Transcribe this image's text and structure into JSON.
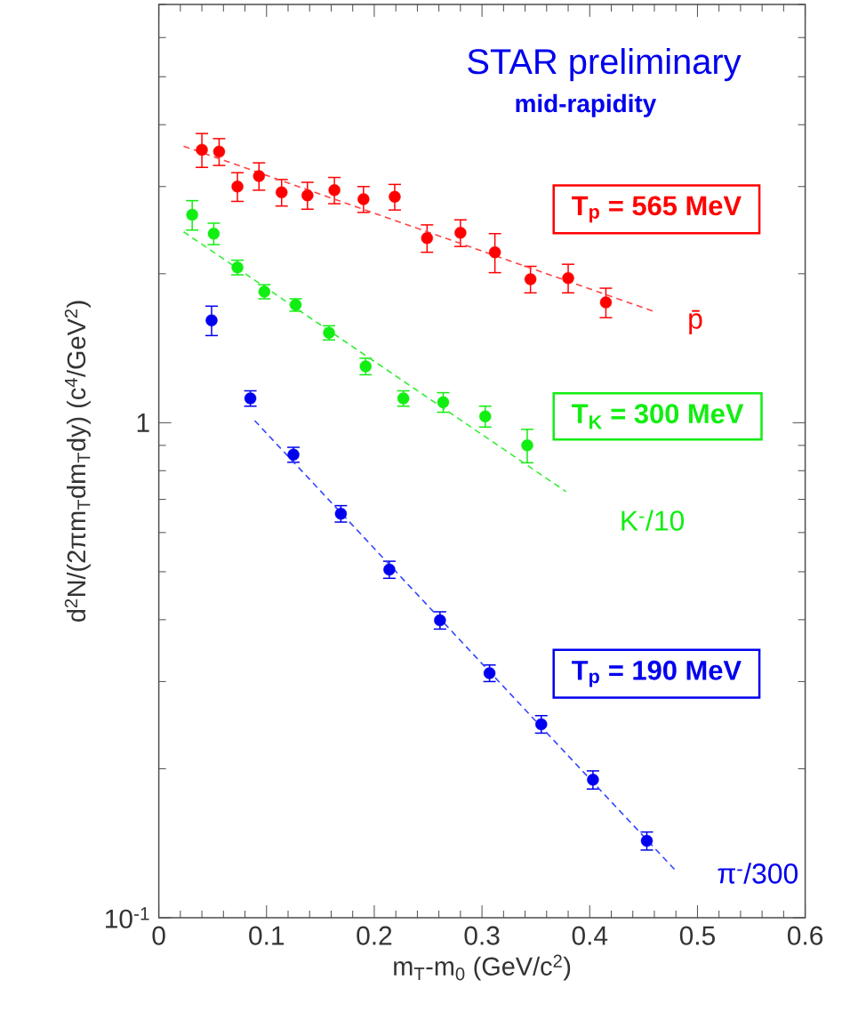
{
  "chart_data": {
    "type": "scatter",
    "xlabel": "m$_{T}$-m$_{0}$ (GeV/c$^{2}$)",
    "ylabel": "d$^{2}$N/(2πm$_{T}$dm$_{T}$dy) (c$^{4}$/GeV$^{2}$)",
    "annotations": [
      "STAR preliminary",
      "mid-rapidity",
      "T$_{p}$ = 565 MeV",
      "T$_{K}$ = 300 MeV",
      "T$_{p}$ = 190 MeV"
    ],
    "log": "y",
    "marker": "circle",
    "xlim": [
      0,
      0.6
    ],
    "ylim": [
      0.1,
      7
    ],
    "xticks": [
      0,
      0.1,
      0.2,
      0.3,
      0.4,
      0.5,
      0.6,
      {
        "value": 0.02,
        "label": null
      },
      {
        "value": 0.04,
        "label": null
      },
      {
        "value": 0.06,
        "label": null
      },
      {
        "value": 0.08,
        "label": null
      },
      {
        "value": 0.12,
        "label": null
      },
      {
        "value": 0.14,
        "label": null
      },
      {
        "value": 0.16,
        "label": null
      },
      {
        "value": 0.18,
        "label": null
      },
      {
        "value": 0.22,
        "label": null
      },
      {
        "value": 0.24,
        "label": null
      },
      {
        "value": 0.26,
        "label": null
      },
      {
        "value": 0.28,
        "label": null
      },
      {
        "value": 0.32,
        "label": null
      },
      {
        "value": 0.34,
        "label": null
      },
      {
        "value": 0.36,
        "label": null
      },
      {
        "value": 0.38,
        "label": null
      },
      {
        "value": 0.42,
        "label": null
      },
      {
        "value": 0.44,
        "label": null
      },
      {
        "value": 0.46,
        "label": null
      },
      {
        "value": 0.48,
        "label": null
      },
      {
        "value": 0.52,
        "label": null
      },
      {
        "value": 0.54,
        "label": null
      },
      {
        "value": 0.56,
        "label": null
      },
      {
        "value": 0.58,
        "label": null
      }
    ],
    "yticks": [
      {
        "value": 0.1,
        "label": "10$^{-1}$"
      },
      1,
      {
        "value": 0.2,
        "label": null
      },
      {
        "value": 0.3,
        "label": null
      },
      {
        "value": 0.4,
        "label": null
      },
      {
        "value": 0.5,
        "label": null
      },
      {
        "value": 0.6,
        "label": null
      },
      {
        "value": 0.7,
        "label": null
      },
      {
        "value": 0.8,
        "label": null
      },
      {
        "value": 0.9,
        "label": null
      },
      {
        "value": 2,
        "label": null
      },
      {
        "value": 3,
        "label": null
      },
      {
        "value": 4,
        "label": null
      },
      {
        "value": 5,
        "label": null
      },
      {
        "value": 6,
        "label": null
      },
      {
        "value": 7,
        "label": null
      }
    ],
    "series": [
      {
        "name": "p̄",
        "color": "#ff0000",
        "x": [
          0.04,
          0.056,
          0.073,
          0.093,
          0.114,
          0.138,
          0.163,
          0.19,
          0.219,
          0.249,
          0.28,
          0.312,
          0.345,
          0.38,
          0.415
        ],
        "values": [
          3.56,
          3.53,
          3.0,
          3.15,
          2.92,
          2.88,
          2.95,
          2.83,
          2.86,
          2.36,
          2.42,
          2.21,
          1.95,
          1.96,
          1.75
        ],
        "errors": [
          0.28,
          0.22,
          0.2,
          0.2,
          0.18,
          0.18,
          0.18,
          0.17,
          0.17,
          0.15,
          0.15,
          0.2,
          0.12,
          0.13,
          0.12
        ]
      },
      {
        "name": "K$^{-}$/10",
        "color": "#11ee11",
        "x": [
          0.031,
          0.051,
          0.073,
          0.098,
          0.127,
          0.158,
          0.192,
          0.227,
          0.264,
          0.303,
          0.342
        ],
        "values": [
          2.63,
          2.41,
          2.06,
          1.84,
          1.73,
          1.52,
          1.3,
          1.12,
          1.1,
          1.03,
          0.9
        ],
        "errors": [
          0.18,
          0.12,
          0.07,
          0.06,
          0.05,
          0.05,
          0.05,
          0.04,
          0.05,
          0.05,
          0.07
        ]
      },
      {
        "name": "π$^{-}$/300",
        "color": "#0000ee",
        "x": [
          0.049,
          0.085,
          0.125,
          0.169,
          0.214,
          0.261,
          0.307,
          0.355,
          0.403,
          0.453
        ],
        "values": [
          1.61,
          1.12,
          0.862,
          0.655,
          0.505,
          0.399,
          0.312,
          0.246,
          0.19,
          0.143
        ],
        "errors": [
          0.11,
          0.04,
          0.03,
          0.025,
          0.02,
          0.016,
          0.012,
          0.01,
          0.008,
          0.006
        ]
      },
      {
        "type": "line",
        "line_style": "dashed",
        "marker": "none",
        "color": "#ff4444",
        "x": [
          0.023,
          0.459
        ],
        "values": [
          3.62,
          1.68
        ]
      },
      {
        "type": "line",
        "line_style": "dashed",
        "marker": "none",
        "color": "#33ee33",
        "x": [
          0.023,
          0.378
        ],
        "values": [
          2.43,
          0.726
        ]
      },
      {
        "type": "line",
        "line_style": "dashed",
        "marker": "none",
        "color": "#3344ff",
        "x": [
          0.089,
          0.479
        ],
        "values": [
          1.01,
          0.125
        ]
      }
    ]
  }
}
